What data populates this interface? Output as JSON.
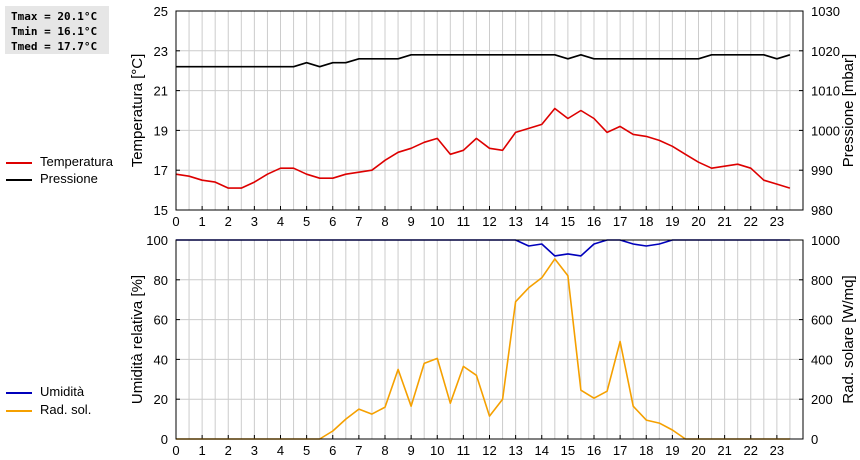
{
  "stats": {
    "tmax": "Tmax = 20.1°C",
    "tmin": "Tmin = 16.1°C",
    "tmed": "Tmed = 17.7°C"
  },
  "colors": {
    "temperature": "#dd0000",
    "pressure": "#000000",
    "humidity": "#0000bb",
    "radiation": "#f5a000",
    "grid": "#cccccc"
  },
  "legend_top": [
    {
      "label": "Temperatura",
      "color": "#dd0000"
    },
    {
      "label": "Pressione",
      "color": "#000000"
    }
  ],
  "legend_bottom": [
    {
      "label": "Umidità",
      "color": "#0000bb"
    },
    {
      "label": "Rad. sol.",
      "color": "#f5a000"
    }
  ],
  "chart_data": [
    {
      "type": "line",
      "grid": true,
      "xlim": [
        0,
        24
      ],
      "xticks": [
        "0",
        "1",
        "2",
        "3",
        "4",
        "5",
        "6",
        "7",
        "8",
        "9",
        "10",
        "11",
        "12",
        "13",
        "14",
        "15",
        "16",
        "17",
        "18",
        "19",
        "20",
        "21",
        "22",
        "23"
      ],
      "left_axis": {
        "label": "Temperatura [°C]",
        "ylim": [
          15,
          25
        ],
        "ticks": [
          15,
          17,
          19,
          21,
          23,
          25
        ]
      },
      "right_axis": {
        "label": "Pressione [mbar]",
        "ylim": [
          980,
          1030
        ],
        "ticks": [
          980,
          990,
          1000,
          1010,
          1020,
          1030
        ]
      },
      "series": [
        {
          "name": "Temperatura",
          "axis": "left",
          "x": [
            0,
            0.5,
            1,
            1.5,
            2,
            2.5,
            3,
            3.5,
            4,
            4.5,
            5,
            5.5,
            6,
            6.5,
            7,
            7.5,
            8,
            8.5,
            9,
            9.5,
            10,
            10.5,
            11,
            11.5,
            12,
            12.5,
            13,
            13.5,
            14,
            14.5,
            15,
            15.5,
            16,
            16.5,
            17,
            17.5,
            18,
            18.5,
            19,
            19.5,
            20,
            20.5,
            21,
            21.5,
            22,
            22.5,
            23,
            23.5
          ],
          "values": [
            16.8,
            16.7,
            16.5,
            16.4,
            16.1,
            16.1,
            16.4,
            16.8,
            17.1,
            17.1,
            16.8,
            16.6,
            16.6,
            16.8,
            16.9,
            17.0,
            17.5,
            17.9,
            18.1,
            18.4,
            18.6,
            17.8,
            18.0,
            18.6,
            18.1,
            18.0,
            18.9,
            19.1,
            19.3,
            20.1,
            19.6,
            20.0,
            19.6,
            18.9,
            19.2,
            18.8,
            18.7,
            18.5,
            18.2,
            17.8,
            17.4,
            17.1,
            17.2,
            17.3,
            17.1,
            16.5,
            16.3,
            16.1
          ]
        },
        {
          "name": "Pressione",
          "axis": "right",
          "x": [
            0,
            0.5,
            1,
            1.5,
            2,
            2.5,
            3,
            3.5,
            4,
            4.5,
            5,
            5.5,
            6,
            6.5,
            7,
            7.5,
            8,
            8.5,
            9,
            9.5,
            10,
            10.5,
            11,
            11.5,
            12,
            12.5,
            13,
            13.5,
            14,
            14.5,
            15,
            15.5,
            16,
            16.5,
            17,
            17.5,
            18,
            18.5,
            19,
            19.5,
            20,
            20.5,
            21,
            21.5,
            22,
            22.5,
            23,
            23.5
          ],
          "values": [
            1016,
            1016,
            1016,
            1016,
            1016,
            1016,
            1016,
            1016,
            1016,
            1016,
            1017,
            1016,
            1017,
            1017,
            1018,
            1018,
            1018,
            1018,
            1019,
            1019,
            1019,
            1019,
            1019,
            1019,
            1019,
            1019,
            1019,
            1019,
            1019,
            1019,
            1018,
            1019,
            1018,
            1018,
            1018,
            1018,
            1018,
            1018,
            1018,
            1018,
            1018,
            1019,
            1019,
            1019,
            1019,
            1019,
            1018,
            1019
          ]
        }
      ]
    },
    {
      "type": "line",
      "grid": true,
      "xlim": [
        0,
        24
      ],
      "xticks": [
        "0",
        "1",
        "2",
        "3",
        "4",
        "5",
        "6",
        "7",
        "8",
        "9",
        "10",
        "11",
        "12",
        "13",
        "14",
        "15",
        "16",
        "17",
        "18",
        "19",
        "20",
        "21",
        "22",
        "23"
      ],
      "left_axis": {
        "label": "Umidità relativa [%]",
        "ylim": [
          0,
          100
        ],
        "ticks": [
          0,
          20,
          40,
          60,
          80,
          100
        ]
      },
      "right_axis": {
        "label": "Rad. solare [W/mq]",
        "ylim": [
          0,
          1000
        ],
        "ticks": [
          0,
          200,
          400,
          600,
          800,
          1000
        ]
      },
      "series": [
        {
          "name": "Umidità",
          "axis": "left",
          "x": [
            0,
            0.5,
            1,
            1.5,
            2,
            2.5,
            3,
            3.5,
            4,
            4.5,
            5,
            5.5,
            6,
            6.5,
            7,
            7.5,
            8,
            8.5,
            9,
            9.5,
            10,
            10.5,
            11,
            11.5,
            12,
            12.5,
            13,
            13.5,
            14,
            14.5,
            15,
            15.5,
            16,
            16.5,
            17,
            17.5,
            18,
            18.5,
            19,
            19.5,
            20,
            20.5,
            21,
            21.5,
            22,
            22.5,
            23,
            23.5
          ],
          "values": [
            100,
            100,
            100,
            100,
            100,
            100,
            100,
            100,
            100,
            100,
            100,
            100,
            100,
            100,
            100,
            100,
            100,
            100,
            100,
            100,
            100,
            100,
            100,
            100,
            100,
            100,
            100,
            97,
            98,
            92,
            93,
            92,
            98,
            100,
            100,
            98,
            97,
            98,
            100,
            100,
            100,
            100,
            100,
            100,
            100,
            100,
            100,
            100
          ]
        },
        {
          "name": "Rad. sol.",
          "axis": "right",
          "x": [
            0,
            0.5,
            1,
            1.5,
            2,
            2.5,
            3,
            3.5,
            4,
            4.5,
            5,
            5.5,
            6,
            6.5,
            7,
            7.5,
            8,
            8.5,
            9,
            9.5,
            10,
            10.5,
            11,
            11.5,
            12,
            12.5,
            13,
            13.5,
            14,
            14.5,
            15,
            15.5,
            16,
            16.5,
            17,
            17.5,
            18,
            18.5,
            19,
            19.5,
            20,
            20.5,
            21,
            21.5,
            22,
            22.5,
            23,
            23.5
          ],
          "values": [
            0,
            0,
            0,
            0,
            0,
            0,
            0,
            0,
            0,
            0,
            0,
            0,
            40,
            100,
            150,
            125,
            160,
            350,
            165,
            380,
            405,
            180,
            365,
            320,
            115,
            200,
            690,
            760,
            810,
            905,
            820,
            245,
            205,
            240,
            490,
            165,
            95,
            80,
            45,
            0,
            0,
            0,
            0,
            0,
            0,
            0,
            0,
            0
          ]
        }
      ]
    }
  ]
}
